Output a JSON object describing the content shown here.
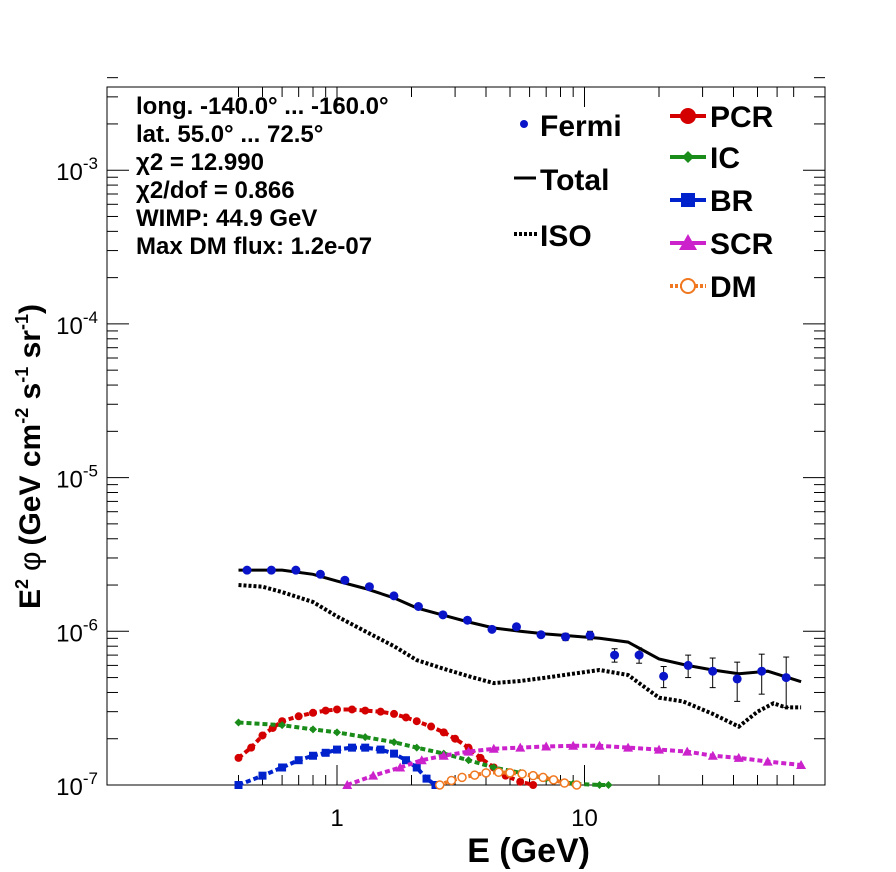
{
  "chart_data": {
    "type": "line",
    "xlabel": "E (GeV)",
    "ylabel_base": "E",
    "ylabel_sup": "2",
    "ylabel_phi": "φ",
    "ylabel_units": "(GeV cm",
    "ylabel_units2": " s",
    "ylabel_units3": " sr",
    "ylabel_end": ")",
    "ylabel_sup2": "-2",
    "ylabel_sup3": "-1",
    "ylabel_sup4": "-1",
    "x_scale": "log",
    "y_scale": "log",
    "xlim": [
      0.4,
      75
    ],
    "ylim": [
      1e-07,
      0.004
    ],
    "x_tick_labels": [
      {
        "value": 1,
        "label": "1"
      },
      {
        "value": 10,
        "label": "10"
      }
    ],
    "y_tick_labels": [
      {
        "value": 1e-07,
        "base": "10",
        "exp": "-7"
      },
      {
        "value": 1e-06,
        "base": "10",
        "exp": "-6"
      },
      {
        "value": 1e-05,
        "base": "10",
        "exp": "-5"
      },
      {
        "value": 0.0001,
        "base": "10",
        "exp": "-4"
      },
      {
        "value": 0.001,
        "base": "10",
        "exp": "-3"
      }
    ],
    "info_lines": [
      "long. -140.0° ... -160.0°",
      "lat. 55.0° ... 72.5°",
      "χ2 = 12.990",
      "χ2/dof = 0.866",
      "WIMP: 44.9 GeV",
      "Max DM flux: 1.2e-07"
    ],
    "legend_left": [
      {
        "name": "Fermi",
        "style": "points"
      },
      {
        "name": "Total",
        "style": "solid"
      },
      {
        "name": "ISO",
        "style": "dotted"
      }
    ],
    "legend_right": [
      {
        "name": "PCR",
        "color": "#d40000",
        "marker": "circle"
      },
      {
        "name": "IC",
        "color": "#1a8c1a",
        "marker": "diamond"
      },
      {
        "name": "BR",
        "color": "#0022cc",
        "marker": "square"
      },
      {
        "name": "SCR",
        "color": "#cc22cc",
        "marker": "triangle"
      },
      {
        "name": "DM",
        "color": "#f07820",
        "marker": "open-circle"
      }
    ],
    "fermi": {
      "x": [
        0.433,
        0.543,
        0.682,
        0.857,
        1.076,
        1.352,
        1.698,
        2.133,
        2.679,
        3.365,
        4.228,
        5.311,
        6.672,
        8.382,
        10.53,
        13.23,
        16.62,
        20.88,
        26.23,
        32.95,
        41.39,
        52.0,
        65.3
      ],
      "y": [
        2.5e-06,
        2.5e-06,
        2.5e-06,
        2.35e-06,
        2.15e-06,
        1.95e-06,
        1.7e-06,
        1.45e-06,
        1.28e-06,
        1.18e-06,
        1.03e-06,
        1.07e-06,
        9.5e-07,
        9.2e-07,
        9.4e-07,
        7e-07,
        7e-07,
        5.1e-07,
        6e-07,
        5.5e-07,
        4.9e-07,
        5.5e-07,
        5e-07
      ],
      "yerr": [
        3e-08,
        3e-08,
        3e-08,
        3e-08,
        3e-08,
        3e-08,
        3e-08,
        3e-08,
        3e-08,
        3e-08,
        3e-08,
        4e-08,
        4e-08,
        5e-08,
        6e-08,
        7e-08,
        8e-08,
        8e-08,
        1e-07,
        1.2e-07,
        1.4e-07,
        1.6e-07,
        1.8e-07
      ],
      "color": "#0a14c8"
    },
    "series": [
      {
        "name": "Total",
        "color": "#000000",
        "style": "solid",
        "x": [
          0.4,
          0.6,
          0.8,
          1.0,
          1.3,
          1.7,
          2.1,
          2.7,
          3.4,
          4.3,
          5.5,
          7.0,
          9.0,
          11.5,
          15.0,
          20.0,
          26.0,
          33.0,
          42.0,
          55.0,
          75.0
        ],
        "y": [
          2.5e-06,
          2.5e-06,
          2.35e-06,
          2.12e-06,
          1.9e-06,
          1.65e-06,
          1.42e-06,
          1.27e-06,
          1.15e-06,
          1.05e-06,
          1e-06,
          9.6e-07,
          9.3e-07,
          9e-07,
          8.5e-07,
          6.6e-07,
          6e-07,
          5.6e-07,
          5.3e-07,
          5.5e-07,
          4.7e-07
        ]
      },
      {
        "name": "ISO",
        "color": "#000000",
        "style": "dotted",
        "x": [
          0.4,
          0.5,
          0.6,
          0.8,
          1.0,
          1.3,
          1.7,
          2.1,
          2.7,
          3.4,
          4.3,
          5.5,
          7.0,
          9.0,
          11.5,
          15.0,
          20.0,
          25.0,
          33.0,
          42.0,
          50.0,
          58.0,
          65.0,
          75.0
        ],
        "y": [
          2e-06,
          1.95e-06,
          1.8e-06,
          1.55e-06,
          1.25e-06,
          1e-06,
          8e-07,
          6.5e-07,
          5.7e-07,
          5.1e-07,
          4.6e-07,
          4.75e-07,
          5e-07,
          5.3e-07,
          5.6e-07,
          5.2e-07,
          3.7e-07,
          3.5e-07,
          2.9e-07,
          2.4e-07,
          3e-07,
          3.4e-07,
          3.2e-07,
          3.2e-07
        ]
      },
      {
        "name": "PCR",
        "color": "#d40000",
        "style": "dashed",
        "marker": "circle",
        "x": [
          0.4,
          0.45,
          0.5,
          0.55,
          0.6,
          0.7,
          0.8,
          0.9,
          1.0,
          1.15,
          1.3,
          1.5,
          1.7,
          1.9,
          2.1,
          2.4,
          2.7,
          3.0,
          3.4,
          3.8,
          4.3,
          4.8,
          5.5,
          6.2
        ],
        "y": [
          1.5e-07,
          1.75e-07,
          2.1e-07,
          2.35e-07,
          2.6e-07,
          2.8e-07,
          2.95e-07,
          3.05e-07,
          3.1e-07,
          3.1e-07,
          3.05e-07,
          3e-07,
          2.9e-07,
          2.75e-07,
          2.6e-07,
          2.4e-07,
          2.2e-07,
          2e-07,
          1.75e-07,
          1.5e-07,
          1.3e-07,
          1.15e-07,
          1.05e-07,
          1e-07
        ]
      },
      {
        "name": "IC",
        "color": "#1a8c1a",
        "style": "dashed",
        "marker": "diamond",
        "x": [
          0.4,
          0.6,
          0.8,
          1.0,
          1.3,
          1.7,
          2.1,
          2.7,
          3.4,
          4.3,
          5.5,
          7.0,
          9.0,
          11.5,
          12.5
        ],
        "y": [
          2.55e-07,
          2.45e-07,
          2.3e-07,
          2.2e-07,
          2.05e-07,
          1.9e-07,
          1.75e-07,
          1.6e-07,
          1.45e-07,
          1.3e-07,
          1.2e-07,
          1.1e-07,
          1.02e-07,
          1e-07,
          1e-07
        ]
      },
      {
        "name": "BR",
        "color": "#0022cc",
        "style": "dashed",
        "marker": "square",
        "x": [
          0.4,
          0.5,
          0.6,
          0.7,
          0.8,
          0.9,
          1.0,
          1.15,
          1.3,
          1.5,
          1.7,
          1.9,
          2.1,
          2.3,
          2.5
        ],
        "y": [
          1e-07,
          1.15e-07,
          1.3e-07,
          1.45e-07,
          1.55e-07,
          1.62e-07,
          1.7e-07,
          1.75e-07,
          1.75e-07,
          1.7e-07,
          1.6e-07,
          1.45e-07,
          1.3e-07,
          1.1e-07,
          1e-07
        ]
      },
      {
        "name": "SCR",
        "color": "#cc22cc",
        "style": "dashed",
        "marker": "triangle",
        "x": [
          1.1,
          1.4,
          1.8,
          2.2,
          2.7,
          3.4,
          4.3,
          5.5,
          7.0,
          9.0,
          11.5,
          15.0,
          20.0,
          26.0,
          33.0,
          42.0,
          55.0,
          75.0
        ],
        "y": [
          1e-07,
          1.15e-07,
          1.3e-07,
          1.45e-07,
          1.55e-07,
          1.65e-07,
          1.72e-07,
          1.75e-07,
          1.78e-07,
          1.8e-07,
          1.8e-07,
          1.75e-07,
          1.7e-07,
          1.65e-07,
          1.55e-07,
          1.5e-07,
          1.42e-07,
          1.35e-07
        ]
      },
      {
        "name": "DM",
        "color": "#f07820",
        "style": "dotted",
        "marker": "open-circle",
        "x": [
          2.6,
          2.9,
          3.2,
          3.6,
          4.0,
          4.5,
          5.0,
          5.6,
          6.2,
          6.8,
          7.5,
          8.3,
          9.3
        ],
        "y": [
          1e-07,
          1.07e-07,
          1.12e-07,
          1.16e-07,
          1.2e-07,
          1.21e-07,
          1.2e-07,
          1.18e-07,
          1.15e-07,
          1.12e-07,
          1.08e-07,
          1.03e-07,
          1e-07
        ]
      }
    ]
  }
}
